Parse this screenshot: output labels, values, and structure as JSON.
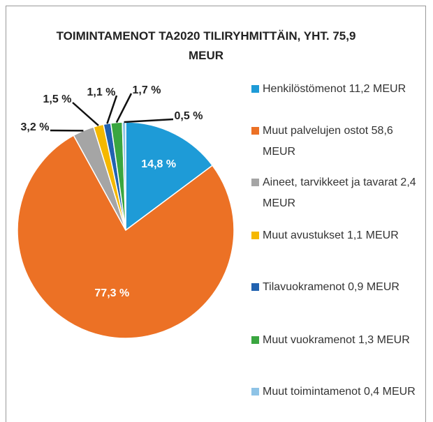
{
  "chart_data": {
    "type": "pie",
    "title": "TOIMINTAMENOT TA2020 TILIRYHMITTÄIN, YHT. 75,9 MEUR",
    "categories": [
      "Henkilöstömenot 11,2 MEUR",
      "Muut palvelujen ostot 58,6 MEUR",
      "Aineet, tarvikkeet ja tavarat 2,4 MEUR",
      "Muut avustukset 1,1 MEUR",
      "Tilavuokramenot 0,9 MEUR",
      "Muut vuokramenot 1,3 MEUR",
      "Muut toimintamenot 0,4 MEUR"
    ],
    "values": [
      14.8,
      77.3,
      3.2,
      1.5,
      1.1,
      1.7,
      0.5
    ],
    "value_labels": [
      "14,8 %",
      "77,3 %",
      "3,2 %",
      "1,5 %",
      "1,1 %",
      "1,7 %",
      "0,5 %"
    ],
    "colors": [
      "#1e9bd7",
      "#ec7125",
      "#a5a5a5",
      "#f5b800",
      "#2162b0",
      "#3aa640",
      "#8ec3e6"
    ],
    "legend": "right"
  }
}
